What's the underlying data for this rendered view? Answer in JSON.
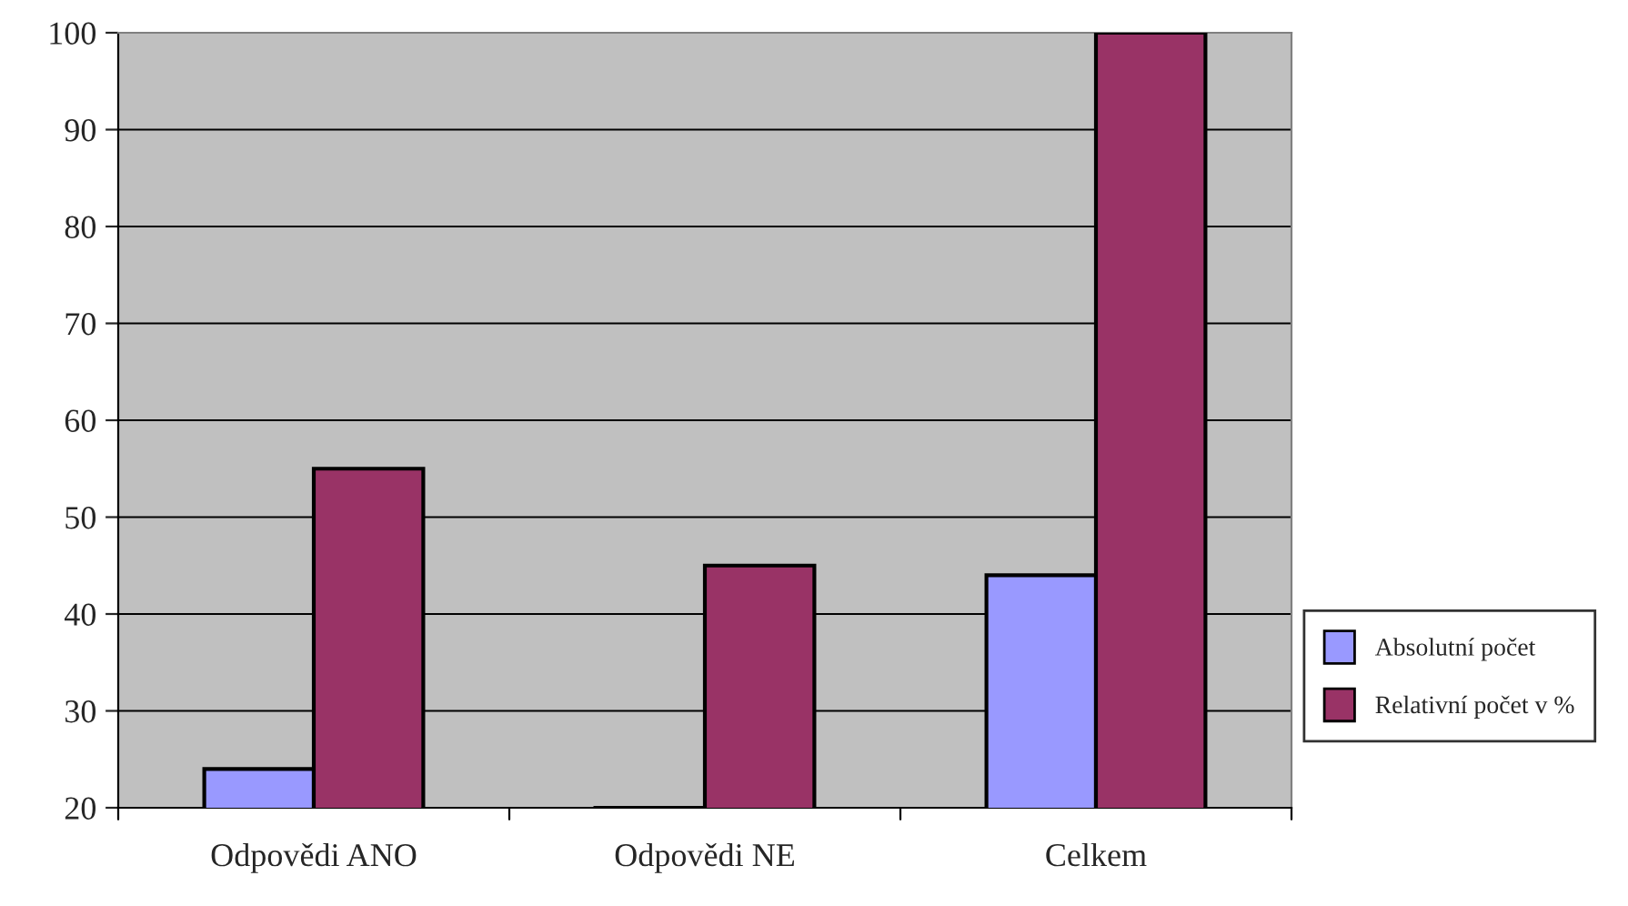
{
  "chart_data": {
    "type": "bar",
    "categories": [
      "Odpovědi ANO",
      "Odpovědi NE",
      "Celkem"
    ],
    "series": [
      {
        "name": "Absolutní počet",
        "color": "#9999ff",
        "values": [
          24,
          20,
          44
        ]
      },
      {
        "name": "Relativní počet v %",
        "color": "#993366",
        "values": [
          55,
          45,
          100
        ]
      }
    ],
    "ylim": [
      20,
      100
    ],
    "yticks": [
      20,
      30,
      40,
      50,
      60,
      70,
      80,
      90,
      100
    ],
    "grid": "y",
    "legend": "right"
  }
}
